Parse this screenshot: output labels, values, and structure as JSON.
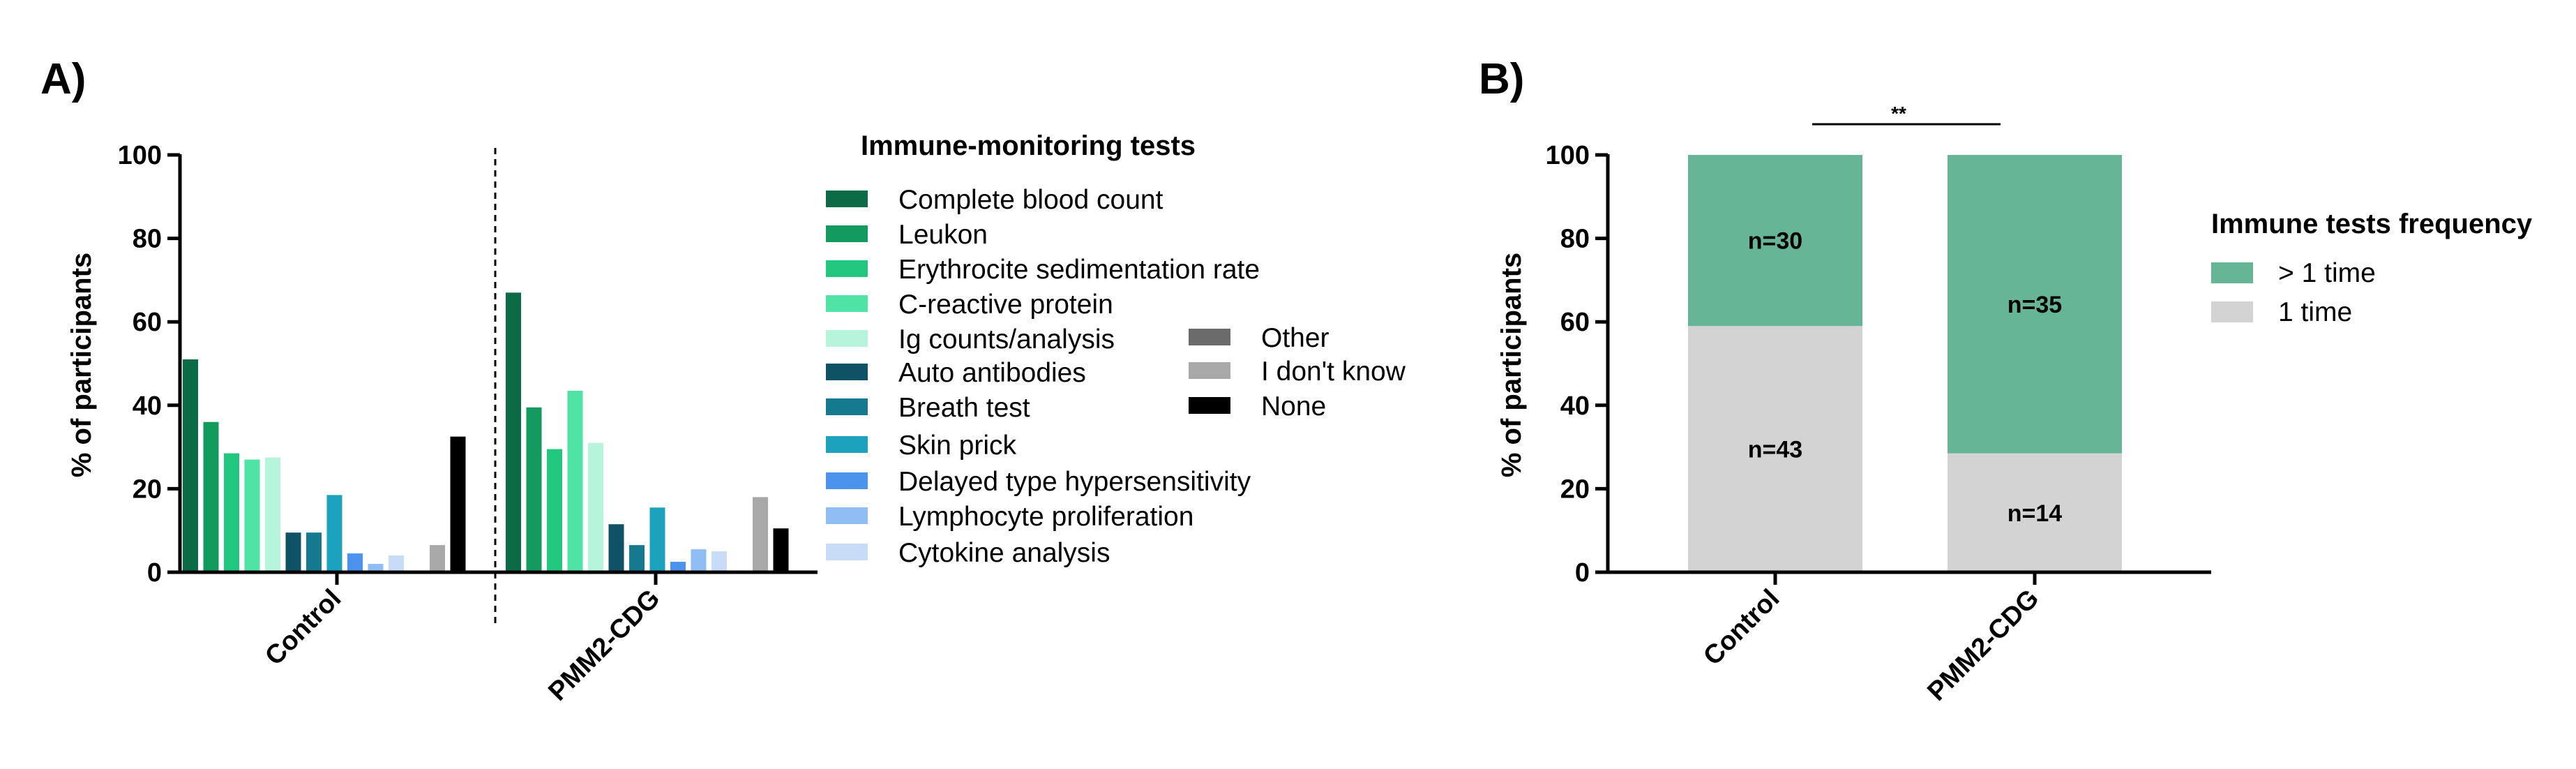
{
  "colors": {
    "Complete blood count": "#0b6b46",
    "Leukon": "#139a5f",
    "Erythrocite sedimentation rate": "#22c77f",
    "C-reactive protein": "#4fe3a5",
    "Ig counts/analysis": "#b6f4dc",
    "Auto antibodies": "#0f5266",
    "Breath test": "#15798f",
    "Skin prick": "#1ca2bd",
    "Delayed type hypersensitivity": "#4b93ec",
    "Lymphocyte proliferation": "#8fbdf4",
    "Cytokine analysis": "#c8dcf7",
    "Other": "#6b6b6b",
    "I don't know": "#a8a8a8",
    "None": "#000000",
    "stack_more": "#66b596",
    "stack_one": "#d3d3d3"
  },
  "panels": {
    "a_label": "A)",
    "b_label": "B)"
  },
  "chart_data": [
    {
      "type": "bar",
      "panel": "A)",
      "ylabel": "% of participants",
      "ylim": [
        0,
        100
      ],
      "yticks": [
        "0",
        "20",
        "40",
        "60",
        "80",
        "100"
      ],
      "categories": [
        "Control",
        "PMM2-CDG"
      ],
      "legend_title": "Immune-monitoring tests",
      "series": [
        {
          "name": "Complete blood count",
          "values": [
            51,
            67
          ]
        },
        {
          "name": "Leukon",
          "values": [
            36,
            39.5
          ]
        },
        {
          "name": "Erythrocite sedimentation rate",
          "values": [
            28.5,
            29.5
          ]
        },
        {
          "name": "C-reactive protein",
          "values": [
            27,
            43.5
          ]
        },
        {
          "name": "Ig counts/analysis",
          "values": [
            27.5,
            31
          ]
        },
        {
          "name": "Auto antibodies",
          "values": [
            9.5,
            11.5
          ]
        },
        {
          "name": "Breath test",
          "values": [
            9.5,
            6.5
          ]
        },
        {
          "name": "Skin prick",
          "values": [
            18.5,
            15.5
          ]
        },
        {
          "name": "Delayed type hypersensitivity",
          "values": [
            4.5,
            2.5
          ]
        },
        {
          "name": "Lymphocyte proliferation",
          "values": [
            2,
            5.5
          ]
        },
        {
          "name": "Cytokine analysis",
          "values": [
            4,
            5
          ]
        },
        {
          "name": "Other",
          "values": [
            0,
            0
          ]
        },
        {
          "name": "I don't know",
          "values": [
            6.5,
            18
          ]
        },
        {
          "name": "None",
          "values": [
            32.5,
            10.5
          ]
        }
      ]
    },
    {
      "type": "bar",
      "stacked": true,
      "panel": "B)",
      "ylabel": "% of participants",
      "ylim": [
        0,
        100
      ],
      "yticks": [
        "0",
        "20",
        "40",
        "60",
        "80",
        "100"
      ],
      "categories": [
        "Control",
        "PMM2-CDG"
      ],
      "legend_title": "Immune tests frequency",
      "series": [
        {
          "name": "1 time",
          "values": [
            59,
            28.5
          ],
          "labels": [
            "n=43",
            "n=14"
          ]
        },
        {
          "name": "> 1 time",
          "values": [
            41,
            71.5
          ],
          "labels": [
            "n=30",
            "n=35"
          ]
        }
      ],
      "significance": "**"
    }
  ]
}
